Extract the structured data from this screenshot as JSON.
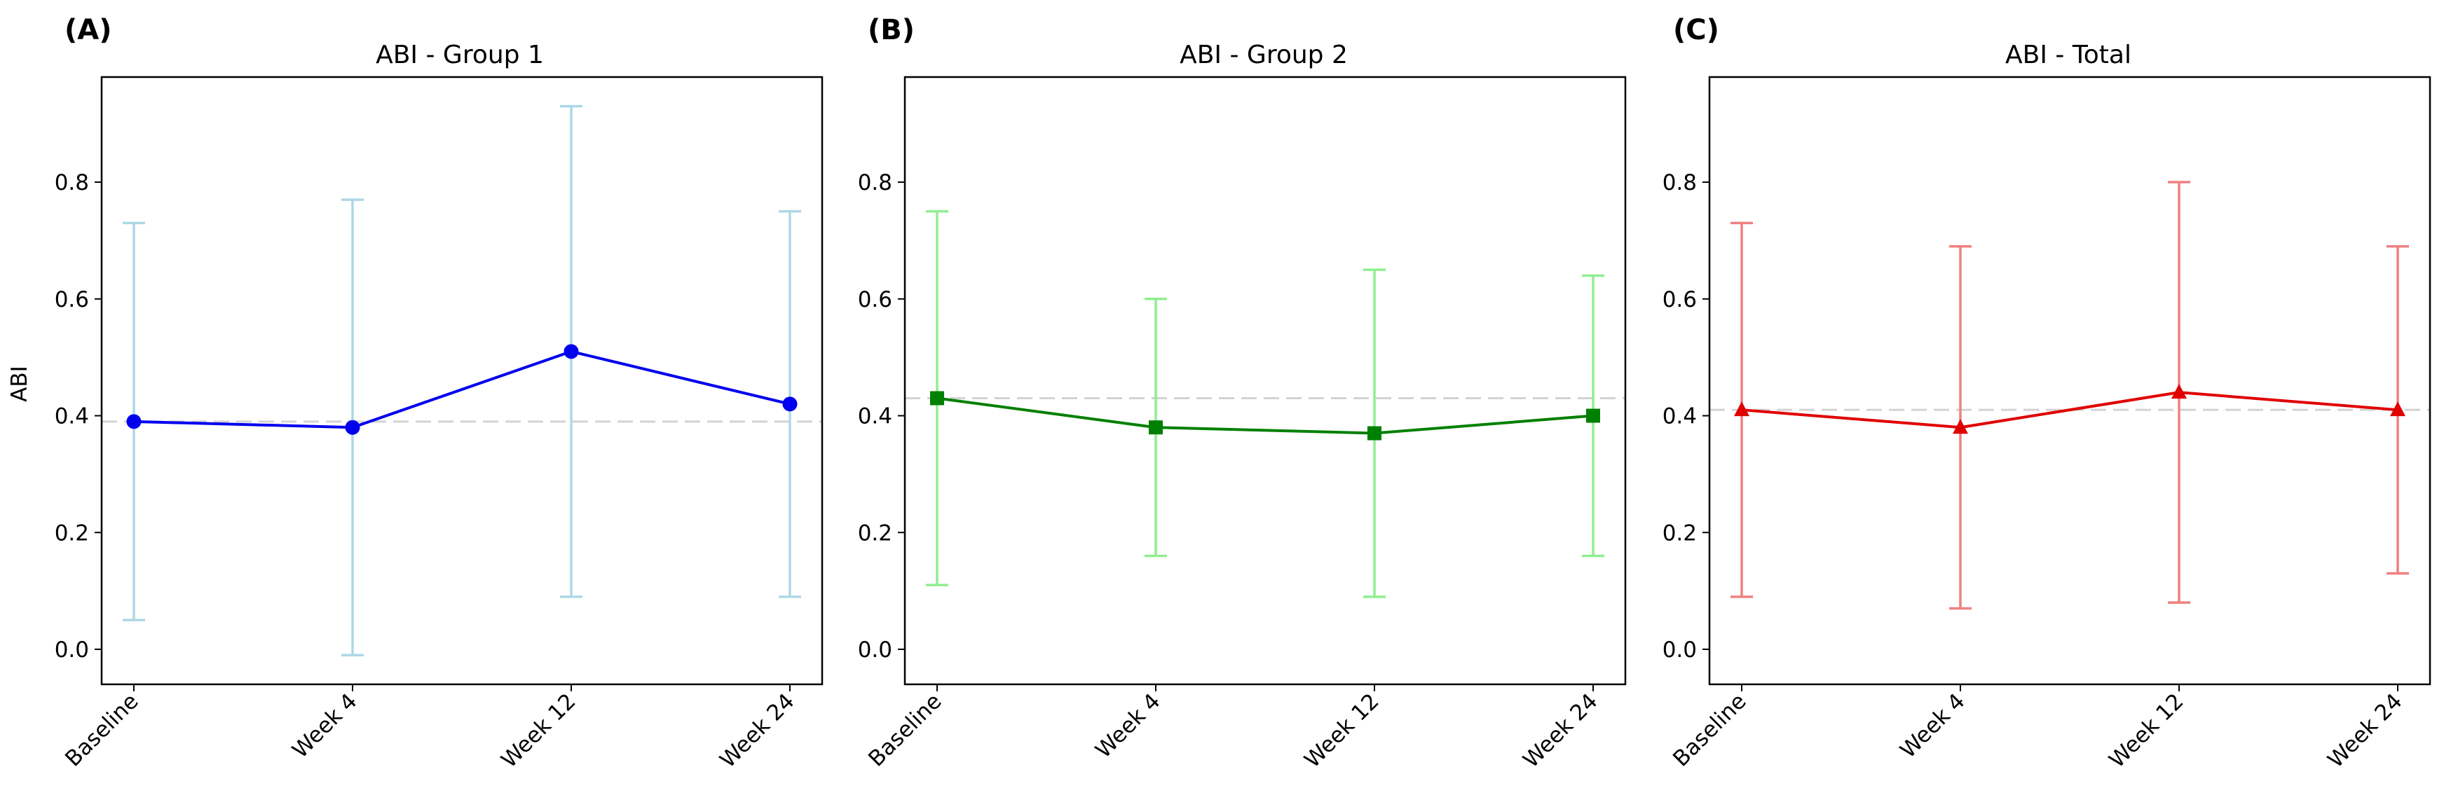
{
  "figure": {
    "ylabel": "ABI"
  },
  "chart_data": [
    {
      "type": "line",
      "panel_label": "(A)",
      "title": "ABI - Group 1",
      "xlabel": "",
      "ylabel": "ABI",
      "categories": [
        "Baseline",
        "Week 4",
        "Week 12",
        "Week 24"
      ],
      "series": [
        {
          "values": [
            0.39,
            0.38,
            0.51,
            0.42
          ],
          "error_low": [
            0.05,
            -0.01,
            0.09,
            0.09
          ],
          "error_high": [
            0.73,
            0.77,
            0.93,
            0.75
          ],
          "color": "#0000ee",
          "error_color": "#add8e6",
          "marker": "circle"
        }
      ],
      "reference_line": 0.39,
      "reference_color": "#d3d3d3",
      "ylim": [
        -0.06,
        0.98
      ],
      "yticks": [
        "0.0",
        "0.2",
        "0.4",
        "0.6",
        "0.8"
      ],
      "grid": false
    },
    {
      "type": "line",
      "panel_label": "(B)",
      "title": "ABI - Group 2",
      "xlabel": "",
      "ylabel": "",
      "categories": [
        "Baseline",
        "Week 4",
        "Week 12",
        "Week 24"
      ],
      "series": [
        {
          "values": [
            0.43,
            0.38,
            0.37,
            0.4
          ],
          "error_low": [
            0.11,
            0.16,
            0.09,
            0.16
          ],
          "error_high": [
            0.75,
            0.6,
            0.65,
            0.64
          ],
          "color": "#008000",
          "error_color": "#90ee90",
          "marker": "square"
        }
      ],
      "reference_line": 0.43,
      "reference_color": "#d3d3d3",
      "ylim": [
        -0.06,
        0.98
      ],
      "yticks": [
        "0.0",
        "0.2",
        "0.4",
        "0.6",
        "0.8"
      ],
      "grid": false
    },
    {
      "type": "line",
      "panel_label": "(C)",
      "title": "ABI - Total",
      "xlabel": "",
      "ylabel": "",
      "categories": [
        "Baseline",
        "Week 4",
        "Week 12",
        "Week 24"
      ],
      "series": [
        {
          "values": [
            0.41,
            0.38,
            0.44,
            0.41
          ],
          "error_low": [
            0.09,
            0.07,
            0.08,
            0.13
          ],
          "error_high": [
            0.73,
            0.69,
            0.8,
            0.69
          ],
          "color": "#e00000",
          "error_color": "#f08080",
          "marker": "triangle"
        }
      ],
      "reference_line": 0.41,
      "reference_color": "#d3d3d3",
      "ylim": [
        -0.06,
        0.98
      ],
      "yticks": [
        "0.0",
        "0.2",
        "0.4",
        "0.6",
        "0.8"
      ],
      "grid": false
    }
  ]
}
